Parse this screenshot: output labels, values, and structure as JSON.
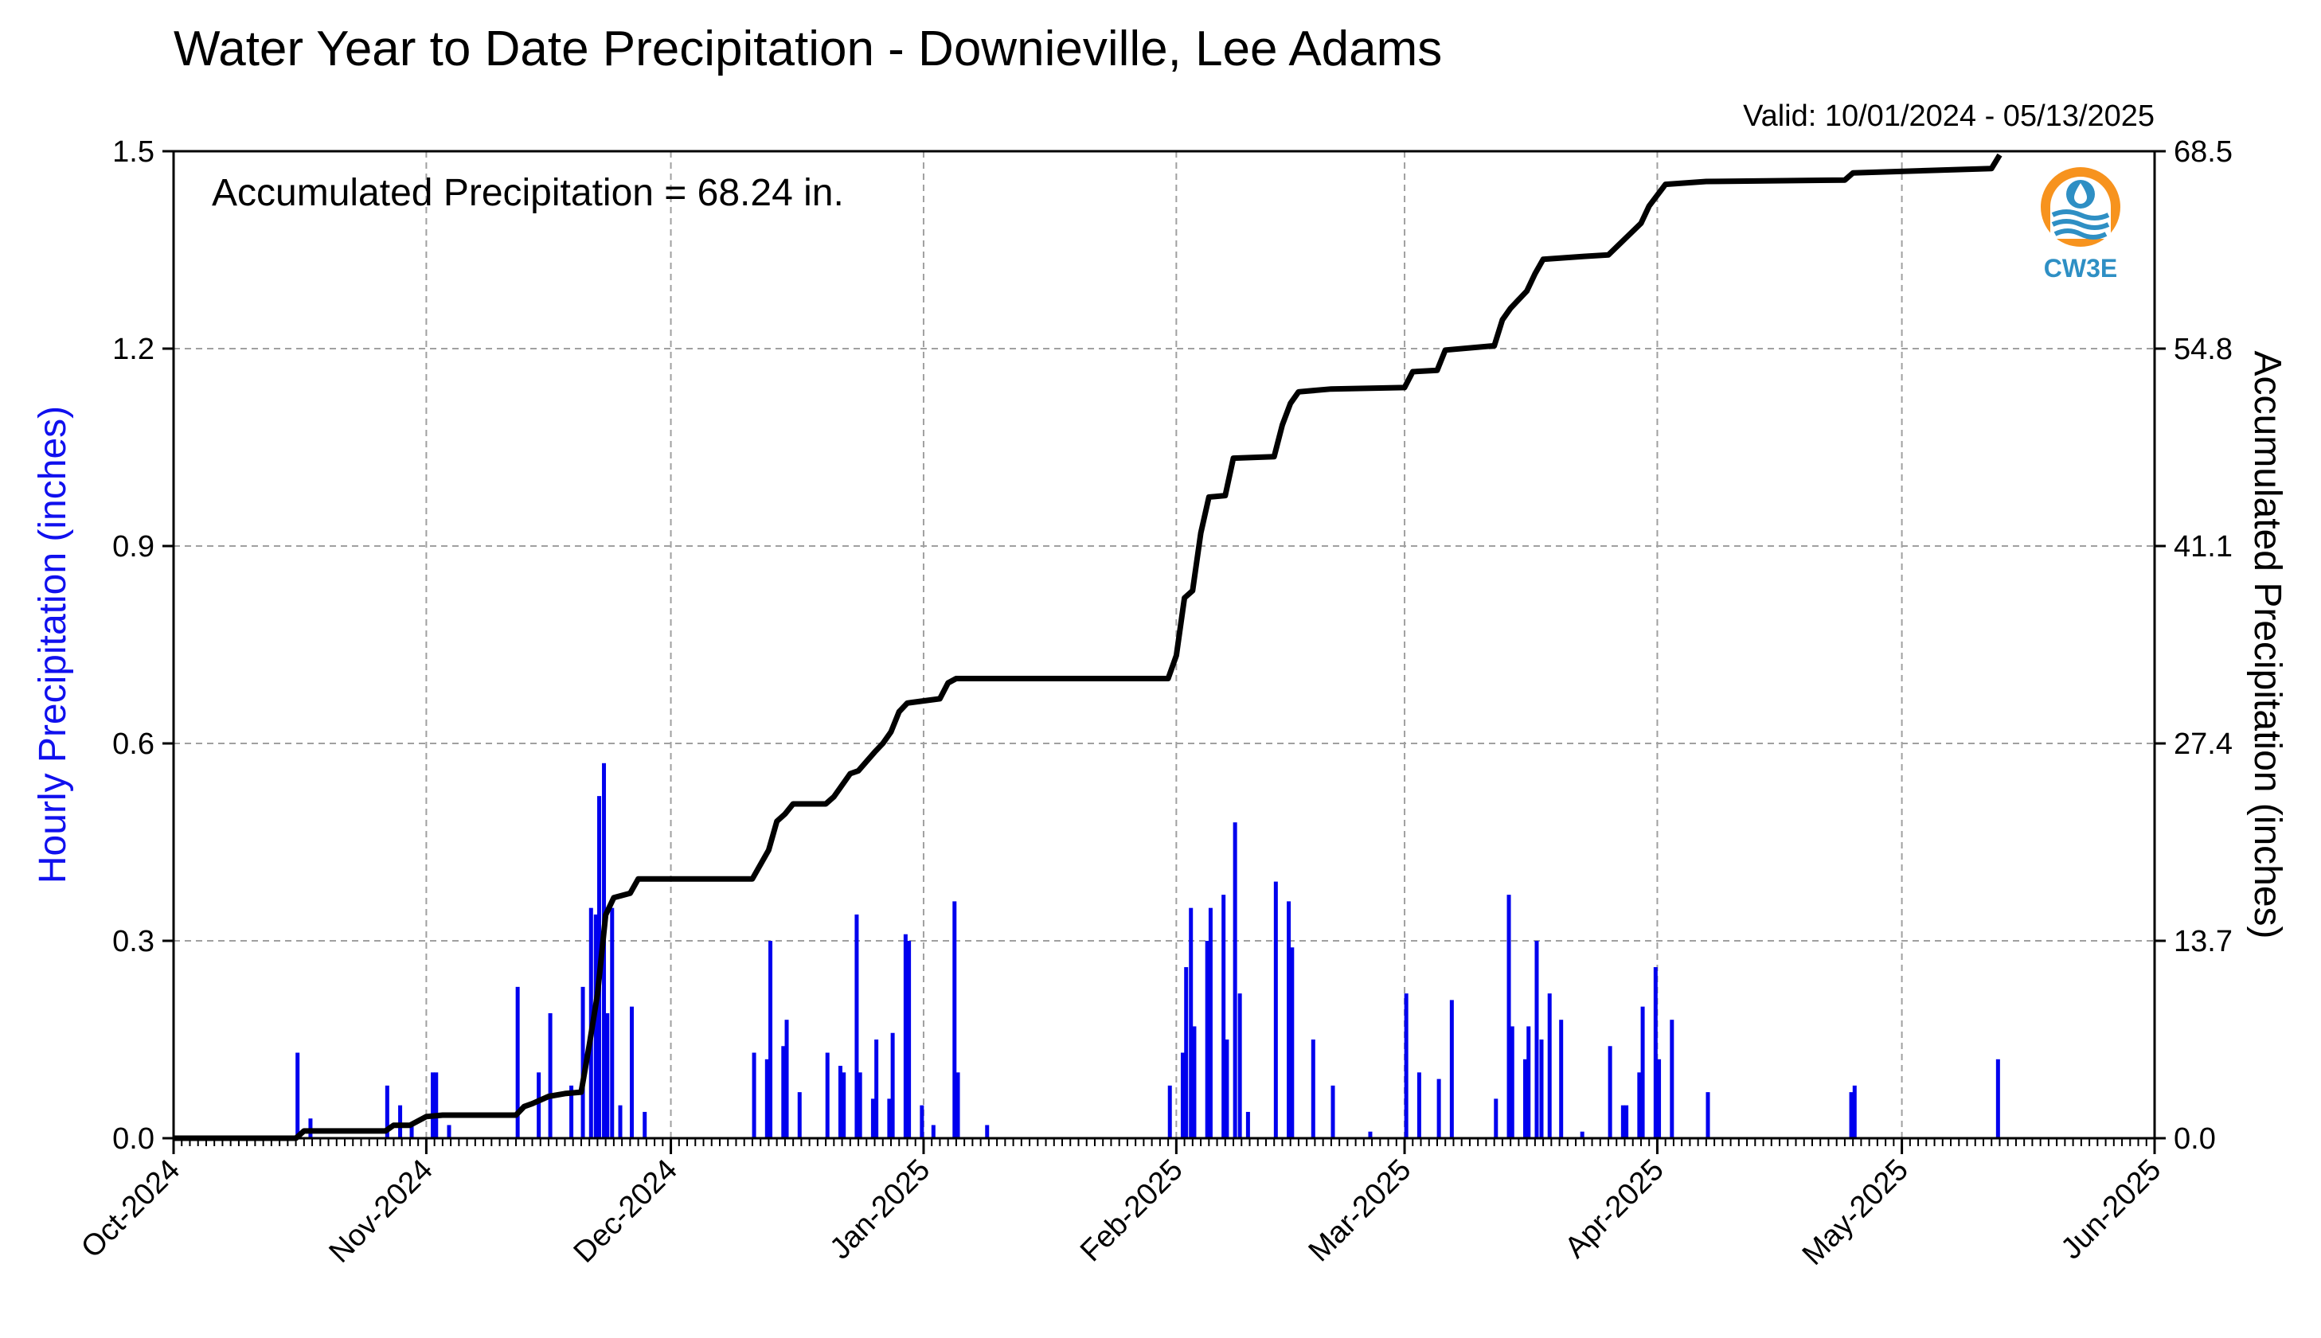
{
  "chart_data": {
    "type": "bar",
    "title": "Water Year to Date Precipitation - Downieville, Lee Adams",
    "subtitle": "Valid: 10/01/2024 - 05/13/2025",
    "annotation": "Accumulated Precipitation = 68.24 in.",
    "ylabel": "Hourly Precipitation (inches)",
    "y2label": "Accumulated Precipitation (inches)",
    "ylim": [
      0,
      1.5
    ],
    "y2lim": [
      0,
      68.5
    ],
    "yticks": [
      "0.0",
      "0.3",
      "0.6",
      "0.9",
      "1.2",
      "1.5"
    ],
    "y2ticks": [
      "0.0",
      "13.7",
      "27.4",
      "41.1",
      "54.8",
      "68.5"
    ],
    "xlim": [
      "2024-10-01",
      "2025-06-01"
    ],
    "xticks": [
      "Oct-2024",
      "Nov-2024",
      "Dec-2024",
      "Jan-2025",
      "Feb-2025",
      "Mar-2025",
      "Apr-2025",
      "May-2025",
      "Jun-2025"
    ],
    "grid": true,
    "series": [
      {
        "name": "Hourly Precipitation (inches)",
        "type": "bar",
        "color": "#0000ee",
        "points": [
          [
            "2024-10-16",
            0.13
          ],
          [
            "2024-10-17",
            0.03
          ],
          [
            "2024-10-27",
            0.08
          ],
          [
            "2024-10-28",
            0.05
          ],
          [
            "2024-10-30",
            0.02
          ],
          [
            "2024-11-01",
            0.1
          ],
          [
            "2024-11-02",
            0.1
          ],
          [
            "2024-11-03",
            0.02
          ],
          [
            "2024-11-12",
            0.23
          ],
          [
            "2024-11-14",
            0.1
          ],
          [
            "2024-11-16",
            0.19
          ],
          [
            "2024-11-18",
            0.08
          ],
          [
            "2024-11-20",
            0.23
          ],
          [
            "2024-11-21",
            0.34
          ],
          [
            "2024-11-21",
            0.35
          ],
          [
            "2024-11-22",
            0.57
          ],
          [
            "2024-11-22",
            0.52
          ],
          [
            "2024-11-23",
            0.35
          ],
          [
            "2024-11-23",
            0.19
          ],
          [
            "2024-11-24",
            0.05
          ],
          [
            "2024-11-26",
            0.2
          ],
          [
            "2024-11-27",
            0.04
          ],
          [
            "2024-12-11",
            0.13
          ],
          [
            "2024-12-12",
            0.12
          ],
          [
            "2024-12-13",
            0.3
          ],
          [
            "2024-12-14",
            0.14
          ],
          [
            "2024-12-15",
            0.18
          ],
          [
            "2024-12-16",
            0.07
          ],
          [
            "2024-12-20",
            0.13
          ],
          [
            "2024-12-21",
            0.11
          ],
          [
            "2024-12-22",
            0.1
          ],
          [
            "2024-12-23",
            0.34
          ],
          [
            "2024-12-24",
            0.1
          ],
          [
            "2024-12-25",
            0.06
          ],
          [
            "2024-12-26",
            0.15
          ],
          [
            "2024-12-27",
            0.06
          ],
          [
            "2024-12-28",
            0.16
          ],
          [
            "2024-12-29",
            0.31
          ],
          [
            "2024-12-30",
            0.3
          ],
          [
            "2024-12-31",
            0.05
          ],
          [
            "2025-01-02",
            0.02
          ],
          [
            "2025-01-04",
            0.36
          ],
          [
            "2025-01-05",
            0.1
          ],
          [
            "2025-01-08",
            0.02
          ],
          [
            "2025-01-31",
            0.08
          ],
          [
            "2025-02-01",
            0.13
          ],
          [
            "2025-02-02",
            0.26
          ],
          [
            "2025-02-02",
            0.35
          ],
          [
            "2025-02-03",
            0.17
          ],
          [
            "2025-02-04",
            0.3
          ],
          [
            "2025-02-05",
            0.35
          ],
          [
            "2025-02-06",
            0.37
          ],
          [
            "2025-02-07",
            0.15
          ],
          [
            "2025-02-08",
            0.22
          ],
          [
            "2025-02-08",
            0.48
          ],
          [
            "2025-02-09",
            0.04
          ],
          [
            "2025-02-13",
            0.39
          ],
          [
            "2025-02-14",
            0.36
          ],
          [
            "2025-02-15",
            0.29
          ],
          [
            "2025-02-17",
            0.15
          ],
          [
            "2025-02-20",
            0.08
          ],
          [
            "2025-02-24",
            0.01
          ],
          [
            "2025-03-01",
            0.22
          ],
          [
            "2025-03-02",
            0.1
          ],
          [
            "2025-03-05",
            0.09
          ],
          [
            "2025-03-06",
            0.21
          ],
          [
            "2025-03-12",
            0.06
          ],
          [
            "2025-03-13",
            0.37
          ],
          [
            "2025-03-14",
            0.17
          ],
          [
            "2025-03-15",
            0.12
          ],
          [
            "2025-03-16",
            0.17
          ],
          [
            "2025-03-17",
            0.15
          ],
          [
            "2025-03-17",
            0.3
          ],
          [
            "2025-03-18",
            0.22
          ],
          [
            "2025-03-20",
            0.18
          ],
          [
            "2025-03-22",
            0.01
          ],
          [
            "2025-03-26",
            0.14
          ],
          [
            "2025-03-27",
            0.05
          ],
          [
            "2025-03-28",
            0.05
          ],
          [
            "2025-03-29",
            0.1
          ],
          [
            "2025-03-30",
            0.2
          ],
          [
            "2025-03-31",
            0.26
          ],
          [
            "2025-04-01",
            0.12
          ],
          [
            "2025-04-02",
            0.18
          ],
          [
            "2025-04-07",
            0.07
          ],
          [
            "2025-04-24",
            0.07
          ],
          [
            "2025-04-25",
            0.08
          ],
          [
            "2025-05-12",
            0.12
          ]
        ]
      },
      {
        "name": "Accumulated Precipitation (inches)",
        "type": "line",
        "color": "#000000",
        "points": [
          [
            "2024-10-01",
            0.0
          ],
          [
            "2024-10-16",
            0.0
          ],
          [
            "2024-10-17",
            0.5
          ],
          [
            "2024-10-27",
            0.5
          ],
          [
            "2024-10-28",
            0.9
          ],
          [
            "2024-10-30",
            0.9
          ],
          [
            "2024-11-01",
            1.5
          ],
          [
            "2024-11-03",
            1.6
          ],
          [
            "2024-11-12",
            1.6
          ],
          [
            "2024-11-13",
            2.2
          ],
          [
            "2024-11-14",
            2.4
          ],
          [
            "2024-11-16",
            2.9
          ],
          [
            "2024-11-18",
            3.1
          ],
          [
            "2024-11-20",
            3.2
          ],
          [
            "2024-11-21",
            6.5
          ],
          [
            "2024-11-22",
            10.0
          ],
          [
            "2024-11-23",
            15.5
          ],
          [
            "2024-11-24",
            16.7
          ],
          [
            "2024-11-26",
            17.0
          ],
          [
            "2024-11-27",
            18.0
          ],
          [
            "2024-12-11",
            18.0
          ],
          [
            "2024-12-13",
            20.0
          ],
          [
            "2024-12-14",
            22.0
          ],
          [
            "2024-12-15",
            22.5
          ],
          [
            "2024-12-16",
            23.2
          ],
          [
            "2024-12-20",
            23.2
          ],
          [
            "2024-12-21",
            23.7
          ],
          [
            "2024-12-23",
            25.3
          ],
          [
            "2024-12-24",
            25.5
          ],
          [
            "2024-12-26",
            26.8
          ],
          [
            "2024-12-27",
            27.4
          ],
          [
            "2024-12-28",
            28.2
          ],
          [
            "2024-12-29",
            29.6
          ],
          [
            "2024-12-30",
            30.2
          ],
          [
            "2025-01-03",
            30.5
          ],
          [
            "2025-01-04",
            31.6
          ],
          [
            "2025-01-05",
            31.9
          ],
          [
            "2025-01-31",
            31.9
          ],
          [
            "2025-02-01",
            33.5
          ],
          [
            "2025-02-02",
            37.5
          ],
          [
            "2025-02-03",
            38.0
          ],
          [
            "2025-02-04",
            42.0
          ],
          [
            "2025-02-05",
            44.5
          ],
          [
            "2025-02-07",
            44.6
          ],
          [
            "2025-02-08",
            47.2
          ],
          [
            "2025-02-13",
            47.3
          ],
          [
            "2025-02-14",
            49.5
          ],
          [
            "2025-02-15",
            51.0
          ],
          [
            "2025-02-16",
            51.8
          ],
          [
            "2025-02-20",
            52.0
          ],
          [
            "2025-03-01",
            52.1
          ],
          [
            "2025-03-02",
            53.2
          ],
          [
            "2025-03-05",
            53.3
          ],
          [
            "2025-03-06",
            54.7
          ],
          [
            "2025-03-12",
            55.0
          ],
          [
            "2025-03-13",
            56.8
          ],
          [
            "2025-03-14",
            57.6
          ],
          [
            "2025-03-16",
            58.8
          ],
          [
            "2025-03-17",
            60.0
          ],
          [
            "2025-03-18",
            61.0
          ],
          [
            "2025-03-23",
            61.2
          ],
          [
            "2025-03-26",
            61.3
          ],
          [
            "2025-03-28",
            62.4
          ],
          [
            "2025-03-30",
            63.5
          ],
          [
            "2025-03-31",
            64.7
          ],
          [
            "2025-04-02",
            66.2
          ],
          [
            "2025-04-07",
            66.4
          ],
          [
            "2025-04-24",
            66.5
          ],
          [
            "2025-04-25",
            67.0
          ],
          [
            "2025-05-12",
            67.3
          ],
          [
            "2025-05-13",
            68.24
          ]
        ]
      }
    ]
  },
  "logo": {
    "name": "cw3e-logo",
    "text": "CW3E",
    "colors": [
      "#f7931e",
      "#2e8fc4"
    ]
  }
}
